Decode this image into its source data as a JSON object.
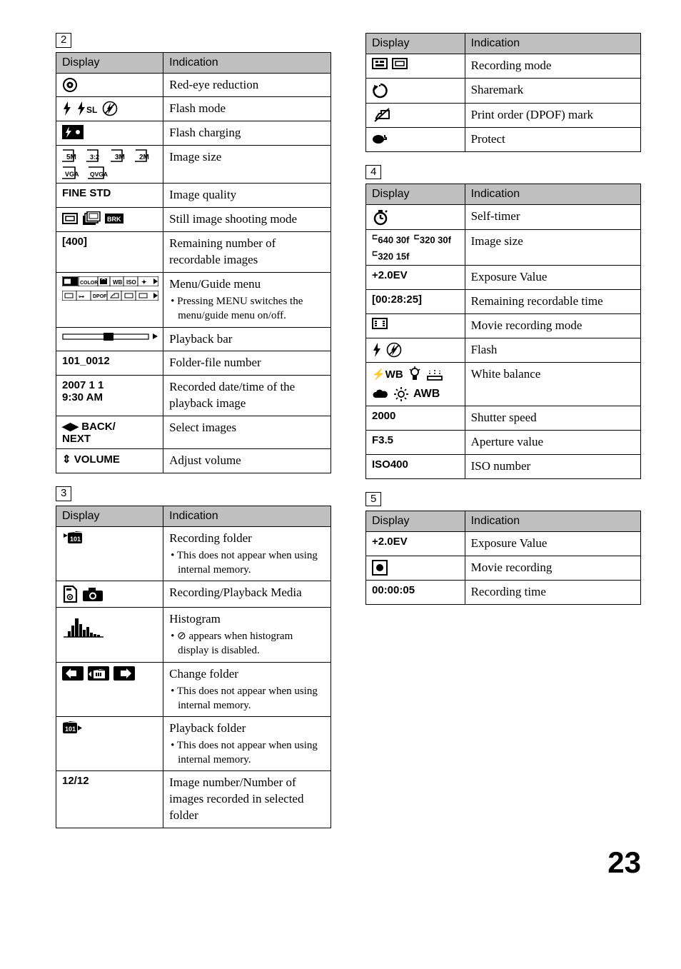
{
  "page_number": "23",
  "headers": {
    "display": "Display",
    "indication": "Indication"
  },
  "section_labels": {
    "s2": "2",
    "s3": "3",
    "s3b": "3",
    "s4": "4",
    "s5": "5"
  },
  "s2": [
    {
      "kind": "icons",
      "icons": [
        "red-eye"
      ],
      "ind": "Red-eye reduction"
    },
    {
      "kind": "icons",
      "icons": [
        "flash-fill",
        "flash-slow",
        "no-flash"
      ],
      "ind": "Flash mode"
    },
    {
      "kind": "icons",
      "icons": [
        "flash-charging"
      ],
      "ind": "Flash charging"
    },
    {
      "kind": "icons",
      "icons": [
        "sz-5m",
        "sz-32",
        "sz-3m",
        "sz-2m",
        "sz-vga",
        "sz-qvga"
      ],
      "ind": "Image size"
    },
    {
      "kind": "text",
      "disp": "FINE STD",
      "dispClass": "",
      "ind": "Image quality"
    },
    {
      "kind": "icons",
      "icons": [
        "mode-single",
        "mode-burst",
        "mode-brk"
      ],
      "ind": "Still image shooting mode"
    },
    {
      "kind": "text",
      "disp": "[400]",
      "ind": "Remaining number of recordable images"
    },
    {
      "kind": "icons",
      "icons": [
        "menu-bar-1",
        "menu-bar-2"
      ],
      "ind": "Menu/Guide menu",
      "notes": [
        "• Pressing MENU switches the menu/guide menu on/off."
      ]
    },
    {
      "kind": "icons",
      "icons": [
        "playback-bar"
      ],
      "ind": "Playback bar"
    },
    {
      "kind": "text",
      "disp": "101_0012",
      "ind": "Folder-file number"
    },
    {
      "kind": "text",
      "disp": "2007 1 1\n9:30 AM",
      "ind": "Recorded date/time of the playback image"
    },
    {
      "kind": "text",
      "disp": "◀▶ BACK/\nNEXT",
      "ind": "Select images"
    },
    {
      "kind": "text",
      "disp": "⇕ VOLUME",
      "ind": "Adjust volume"
    }
  ],
  "s3": [
    {
      "kind": "icons",
      "icons": [
        "rec-folder"
      ],
      "ind": "Recording folder",
      "notes": [
        "• This does not appear when using internal memory."
      ]
    },
    {
      "kind": "icons",
      "icons": [
        "ms-media",
        "cam-media"
      ],
      "ind": "Recording/Playback Media"
    },
    {
      "kind": "icons",
      "icons": [
        "histogram"
      ],
      "ind": "Histogram",
      "notes": [
        "• ⊘ appears when histogram display is disabled."
      ]
    },
    {
      "kind": "icons",
      "icons": [
        "chg-folder-prev",
        "chg-folder-sel",
        "chg-folder-next"
      ],
      "ind": "Change folder",
      "notes": [
        "• This does not appear when using internal memory."
      ]
    },
    {
      "kind": "icons",
      "icons": [
        "play-folder"
      ],
      "ind": "Playback folder",
      "notes": [
        "• This does not appear when using internal memory."
      ]
    },
    {
      "kind": "text",
      "disp": "12/12",
      "ind": "Image number/Number of images recorded in selected folder"
    }
  ],
  "s3b": [
    {
      "kind": "icons",
      "icons": [
        "rec-std",
        "rec-mail"
      ],
      "ind": "Recording mode"
    },
    {
      "kind": "icons",
      "icons": [
        "sharemark"
      ],
      "ind": "Sharemark"
    },
    {
      "kind": "icons",
      "icons": [
        "dpof"
      ],
      "ind": "Print order (DPOF) mark"
    },
    {
      "kind": "icons",
      "icons": [
        "protect"
      ],
      "ind": "Protect"
    }
  ],
  "s4": [
    {
      "kind": "icons",
      "icons": [
        "self-timer"
      ],
      "ind": "Self-timer"
    },
    {
      "kind": "icons",
      "icons": [
        "mv-640-30",
        "mv-320-30",
        "mv-320-15"
      ],
      "ind": "Image size"
    },
    {
      "kind": "text",
      "disp": "+2.0EV",
      "ind": "Exposure Value"
    },
    {
      "kind": "text",
      "disp": "[00:28:25]",
      "ind": "Remaining recordable time"
    },
    {
      "kind": "icons",
      "icons": [
        "movie-mode"
      ],
      "ind": "Movie recording mode"
    },
    {
      "kind": "icons",
      "icons": [
        "flash-fill",
        "no-flash"
      ],
      "ind": "Flash"
    },
    {
      "kind": "icons",
      "icons": [
        "wb-flash",
        "wb-incand",
        "wb-fluor",
        "wb-cloudy",
        "wb-day",
        "wb-auto"
      ],
      "ind": "White balance"
    },
    {
      "kind": "text",
      "disp": "2000",
      "ind": "Shutter speed"
    },
    {
      "kind": "text",
      "disp": "F3.5",
      "ind": "Aperture value"
    },
    {
      "kind": "text",
      "disp": "ISO400",
      "ind": "ISO number"
    }
  ],
  "s5": [
    {
      "kind": "text",
      "disp": "+2.0EV",
      "ind": "Exposure Value"
    },
    {
      "kind": "icons",
      "icons": [
        "rec-dot"
      ],
      "ind": "Movie recording"
    },
    {
      "kind": "text",
      "disp": "00:00:05",
      "ind": "Recording time"
    }
  ],
  "icon_svg": {
    "red-eye": "<svg width='22' height='22' viewBox='0 0 22 22'><circle cx='11' cy='11' r='9' fill='none' stroke='#000' stroke-width='2'/><circle cx='11' cy='11' r='4.5' fill='#000'/><circle cx='11' cy='11' r='1.6' fill='#fff'/></svg>",
    "flash-fill": "<svg width='14' height='20' viewBox='0 0 14 20'><polygon points='8,0 2,11 6,11 4,20 12,8 8,8' fill='#000'/></svg>",
    "flash-slow": "<svg width='30' height='20' viewBox='0 0 30 20'><polygon points='8,0 2,11 6,11 4,20 12,8 8,8' fill='#000'/><text x='14' y='16' font-family='Helvetica' font-size='12' font-weight='700'>SL</text></svg>",
    "no-flash": "<svg width='22' height='22' viewBox='0 0 22 22'><circle cx='11' cy='11' r='9.5' fill='none' stroke='#000' stroke-width='1.6'/><polygon points='12,3 7,12 10,12 8,19 15,9 11,9' fill='#000'/><line x1='4' y1='18' x2='18' y2='4' stroke='#000' stroke-width='1.6'/></svg>",
    "flash-charging": "<svg width='30' height='20' viewBox='0 0 30 20'><rect x='0' y='0' width='30' height='20' fill='#000'/><polygon points='10,2 5,11 8,11 6,18 13,8 9,8' fill='#fff'/><circle cx='22' cy='10' r='3' fill='#fff'/></svg>",
    "sz-5m": "<svg width='28' height='18' viewBox='0 0 28 18'><path d='M1 1 h15 v16 h-26 v-10' fill='none' stroke='#000' stroke-width='1.6'/><text x='6' y='14' font-family='Helvetica' font-size='10' font-weight='700'>5M</text></svg>",
    "sz-32": "<svg width='28' height='18' viewBox='0 0 28 18'><path d='M1 1 h15 v16 h-26 v-10' fill='none' stroke='#000' stroke-width='1.6'/><text x='5' y='14' font-family='Helvetica' font-size='9' font-weight='700'>3:2</text></svg>",
    "sz-3m": "<svg width='28' height='18' viewBox='0 0 28 18'><path d='M1 1 h15 v16 h-26 v-10' fill='none' stroke='#000' stroke-width='1.6'/><text x='6' y='14' font-family='Helvetica' font-size='10' font-weight='700'>3M</text></svg>",
    "sz-2m": "<svg width='28' height='18' viewBox='0 0 28 18'><path d='M1 1 h15 v16 h-26 v-10' fill='none' stroke='#000' stroke-width='1.6'/><text x='6' y='14' font-family='Helvetica' font-size='10' font-weight='700'>2M</text></svg>",
    "sz-vga": "<svg width='30' height='18' viewBox='0 0 30 18'><path d='M1 1 h17 v16 h-28 v-10' fill='none' stroke='#000' stroke-width='1.6'/><text x='4' y='14' font-family='Helvetica' font-size='9' font-weight='700'>VGA</text></svg>",
    "sz-qvga": "<svg width='34' height='18' viewBox='0 0 34 18'><path d='M1 1 h21 v16 h-32 v-10' fill='none' stroke='#000' stroke-width='1.6'/><text x='3' y='14' font-family='Helvetica' font-size='8.5' font-weight='700'>QVGA</text></svg>",
    "mode-single": "<svg width='22' height='16' viewBox='0 0 22 16'><rect x='1' y='1' width='20' height='14' fill='none' stroke='#000' stroke-width='2'/><rect x='5' y='5' width='12' height='6' fill='none' stroke='#000' stroke-width='1.5'/></svg>",
    "mode-burst": "<svg width='26' height='20' viewBox='0 0 26 20'><rect x='1' y='6' width='18' height='13' fill='#000'/><rect x='4' y='3' width='18' height='13' fill='#fff' stroke='#000' stroke-width='1.6'/><rect x='7' y='0.5' width='18' height='13' fill='#fff' stroke='#000' stroke-width='1.6'/><rect x='10' y='3' width='12' height='7' fill='#fff' stroke='#000' stroke-width='1'/></svg>",
    "mode-brk": "<svg width='26' height='14' viewBox='0 0 26 14'><rect x='0' y='0' width='26' height='14' fill='#000'/><text x='3' y='11' font-family='Helvetica' font-size='9' font-weight='700' fill='#fff'>BRK</text></svg>",
    "menu-bar-1": "<svg width='135' height='14' viewBox='0 0 135 14'><rect x='0' y='0' width='135' height='14' fill='none' stroke='#000' stroke-width='1.2'/><rect x='1' y='1' width='21' height='12' fill='#000'/><rect x='3' y='3.5' width='9' height='7' fill='#fff'/><line x1='23' y1='0' x2='23' y2='14' stroke='#000'/><text x='25' y='11' font-family='Helvetica' font-size='7'>COLOR</text><line x1='50' y1='0' x2='50' y2='14' stroke='#000'/><rect x='53' y='3' width='10' height='8' fill='#000'/><path d='M55 5 l3 -2 l3 2' fill='none' stroke='#fff'/><line x1='67' y1='0' x2='67' y2='14' stroke='#000'/><text x='71' y='11' font-family='Helvetica' font-size='8'>WB</text><line x1='86' y1='0' x2='86' y2='14' stroke='#000'/><text x='90' y='11' font-family='Helvetica' font-size='8'>ISO</text><line x1='106' y1='0' x2='106' y2='14' stroke='#000'/><text x='111' y='11' font-family='Helvetica' font-size='9'>✦</text><polygon points='128,3 134,7 128,11' fill='#000'/></svg>",
    "menu-bar-2": "<svg width='135' height='14' viewBox='0 0 135 14'><rect x='0' y='0' width='135' height='14' fill='none' stroke='#000' stroke-width='1.2'/><line x1='20' y1='0' x2='20' y2='14' stroke='#000'/><rect x='4' y='4' width='11' height='6' fill='none' stroke='#000'/><line x1='40' y1='0' x2='40' y2='14' stroke='#000'/><text x='23' y='11' font-family='Helvetica' font-size='8'>⊶</text><line x1='63' y1='0' x2='63' y2='14' stroke='#000'/><text x='43' y='10' font-family='Helvetica' font-size='7'>DPOF</text><line x1='83' y1='0' x2='83' y2='14' stroke='#000'/><path d='M68 10 l3 -4 h2 v-2 h6 v6 z' fill='none' stroke='#000'/><line x1='103' y1='0' x2='103' y2='14' stroke='#000'/><rect x='88' y='4' width='11' height='6' fill='none' stroke='#000'/><polygon points='128,3 134,7 128,11' fill='#000'/><rect x='108' y='4' width='11' height='6' fill='none' stroke='#000'/></svg>",
    "playback-bar": "<svg width='135' height='14' viewBox='0 0 135 14'><rect x='1' y='4' width='120' height='7' fill='none' stroke='#000' stroke-width='1.2'/><rect x='58' y='2' width='14' height='11' fill='#000'/><polygon points='127,3 134,7 127,11' fill='#000'/></svg>",
    "rec-folder": "<svg width='30' height='20' viewBox='0 0 30 20'><polygon points='2,4 2,10 8,7' fill='#000'/><rect x='8' y='3' width='20' height='15' rx='2' fill='#000'/><path d='M10 3 h7 l2 -2 h10' fill='#000'/><text x='11' y='15' font-family='Helvetica' font-size='9' font-weight='700' fill='#fff'>101</text></svg>",
    "ms-media": "<svg width='22' height='26' viewBox='0 0 22 26'><path d='M3 2 h12 l5 5 v17 h-17 z' fill='none' stroke='#000' stroke-width='2.2'/><rect x='6' y='5' width='7' height='3' fill='#000'/><circle cx='11' cy='17' r='3.5' fill='none' stroke='#000' stroke-width='1.6'/><polygon points='10,15.5 13,17 10,18.5' fill='#000'/></svg>",
    "cam-media": "<svg width='30' height='22' viewBox='0 0 30 22'><rect x='1' y='6' width='28' height='15' rx='2' fill='#000'/><rect x='9' y='2' width='10' height='5' fill='#000'/><circle cx='15' cy='13.5' r='5' fill='#fff'/><circle cx='15' cy='13.5' r='3' fill='#000'/></svg>",
    "histogram": "<svg width='60' height='38' viewBox='0 0 60 38'><line x1='2' y1='36' x2='58' y2='36' stroke='#000' stroke-width='1.5'/><rect x='8' y='28' width='4' height='8' fill='#000'/><rect x='13' y='20' width='4' height='16' fill='#000'/><rect x='18' y='10' width='5' height='26' fill='#000'/><rect x='24' y='18' width='4' height='18' fill='#000'/><rect x='29' y='26' width='4' height='10' fill='#000'/><rect x='34' y='22' width='4' height='14' fill='#000'/><rect x='39' y='30' width='4' height='6' fill='#000'/><rect x='44' y='32' width='4' height='4' fill='#000'/><rect x='49' y='33' width='4' height='3' fill='#000'/></svg>",
    "chg-folder-prev": "<svg width='30' height='20' viewBox='0 0 30 20'><rect x='0' y='0' width='30' height='20' fill='#000' rx='2'/><path d='M20 6 h-8 v-3 l-7 7 l7 7 v-3 h8 z' fill='#fff'/></svg>",
    "chg-folder-sel": "<svg width='30' height='20' viewBox='0 0 30 20'><rect x='0' y='0' width='30' height='20' fill='#000' rx='2'/><rect x='8' y='6' width='16' height='11' fill='#fff'/><path d='M8 6 h6 l2 -2 h8' fill='#fff'/><rect x='11' y='9' width='2' height='5' fill='#000'/><rect x='14' y='9' width='2' height='5' fill='#000'/><rect x='17' y='9' width='2' height='5' fill='#000'/><polygon points='5,7 5,15 1,11' fill='#fff'/></svg>",
    "chg-folder-next": "<svg width='30' height='20' viewBox='0 0 30 20'><rect x='0' y='0' width='30' height='20' fill='#000' rx='2'/><path d='M10 6 h8 v-3 l7 7 l-7 7 v-3 h-8 z' fill='#fff'/></svg>",
    "play-folder": "<svg width='30' height='20' viewBox='0 0 30 20'><rect x='1' y='3' width='20' height='15' rx='2' fill='#000'/><path d='M1 3 h7 l2 -2 h10' fill='#000'/><text x='4' y='15' font-family='Helvetica' font-size='9' font-weight='700' fill='#fff'>101</text><polygon points='22,7 28,10.5 22,14' fill='#000'/></svg>",
    "rec-std": "<svg width='22' height='16' viewBox='0 0 22 16'><rect x='1' y='1' width='20' height='14' fill='none' stroke='#000' stroke-width='2'/><rect x='5' y='4' width='4' height='3' fill='#000'/><rect x='5' y='9' width='12' height='3' fill='#000'/><rect x='11' y='4' width='6' height='3' fill='#000'/></svg>",
    "rec-mail": "<svg width='22' height='16' viewBox='0 0 22 16'><rect x='1' y='1' width='20' height='14' fill='none' stroke='#000' stroke-width='2'/><rect x='5' y='5' width='12' height='6' fill='none' stroke='#000' stroke-width='1.5'/></svg>",
    "sharemark": "<svg width='24' height='24' viewBox='0 0 24 24'><path d='M12 3 a9 9 0 1 1 -8 4' fill='none' stroke='#000' stroke-width='2.5'/><polygon points='3,4 9,6 4,11' fill='#000'/><circle cx='11' cy='5' r='1.2' fill='#000'/></svg>",
    "dpof": "<svg width='26' height='22' viewBox='0 0 26 22'><path d='M6 15 l4 -6 h3 v-4 h11 v11 h-18 z' fill='none' stroke='#000' stroke-width='2'/><line x1='4' y1='20' x2='24' y2='2' stroke='#000' stroke-width='2'/></svg>",
    "protect": "<svg width='22' height='18' viewBox='0 0 22 18'><ellipse cx='9' cy='11' rx='8' ry='6' fill='#000'/><path d='M15 11 h5 v-2 l-2 -1 v-3' fill='none' stroke='#000' stroke-width='2'/></svg>",
    "self-timer": "<svg width='24' height='24' viewBox='0 0 24 24'><circle cx='12' cy='14' r='8' fill='none' stroke='#000' stroke-width='2.5'/><line x1='12' y1='14' x2='12' y2='9' stroke='#000' stroke-width='2.5'/><line x1='12' y1='14' x2='16' y2='14' stroke='#000' stroke-width='2.2'/><rect x='9' y='2' width='6' height='3' fill='#000'/><line x1='19' y1='5' x2='21' y2='3' stroke='#000' stroke-width='2.5'/></svg>",
    "mv-640-30": "<span style='font-family:Helvetica;font-size:13px;font-weight:700;white-space:nowrap'><sup style='font-size:10px'>⊏</sup>640 30f</span>",
    "mv-320-30": "<span style='font-family:Helvetica;font-size:13px;font-weight:700;white-space:nowrap'><sup style='font-size:10px'>⊏</sup>320 30f</span>",
    "mv-320-15": "<span style='font-family:Helvetica;font-size:13px;font-weight:700;white-space:nowrap'><sup style='font-size:10px'>⊏</sup>320 15f</span>",
    "movie-mode": "<svg width='22' height='16' viewBox='0 0 22 16'><rect x='1' y='1' width='20' height='14' fill='none' stroke='#000' stroke-width='2'/><rect x='4' y='4' width='3' height='2' fill='#000'/><rect x='4' y='7' width='3' height='2' fill='#000'/><rect x='4' y='10' width='3' height='2' fill='#000'/><rect x='15' y='4' width='3' height='2' fill='#000'/><rect x='15' y='7' width='3' height='2' fill='#000'/><rect x='15' y='10' width='3' height='2' fill='#000'/></svg>",
    "wb-flash": "<span style='font-family:Helvetica;font-size:15px;font-weight:700'>⚡WB</span>",
    "wb-incand": "<svg width='20' height='22' viewBox='0 0 20 22'><circle cx='10' cy='8' r='5' fill='none' stroke='#000' stroke-width='1.8'/><line x1='10' y1='0' x2='10' y2='3' stroke='#000' stroke-width='1.5'/><line x1='3' y1='4' x2='5' y2='6' stroke='#000' stroke-width='1.5'/><line x1='17' y1='4' x2='15' y2='6' stroke='#000' stroke-width='1.5'/><rect x='7' y='13' width='6' height='6' fill='#000'/></svg>",
    "wb-fluor": "<svg width='24' height='18' viewBox='0 0 24 18'><rect x='2' y='12' width='20' height='5' fill='none' stroke='#000' stroke-width='1.8'/><line x1='5' y1='9' x2='5' y2='4' stroke='#000' stroke-width='1.5' stroke-dasharray='2 2'/><line x1='12' y1='9' x2='12' y2='3' stroke='#000' stroke-width='1.5' stroke-dasharray='2 2'/><line x1='19' y1='9' x2='19' y2='4' stroke='#000' stroke-width='1.5' stroke-dasharray='2 2'/></svg>",
    "wb-cloudy": "<svg width='24' height='16' viewBox='0 0 24 16'><path d='M5 13 a4 4 0 0 1 1 -8 a5 5 0 0 1 9 -1 a4 4 0 0 1 4 9 z' fill='#000'/></svg>",
    "wb-day": "<svg width='22' height='22' viewBox='0 0 22 22'><circle cx='11' cy='11' r='4' fill='none' stroke='#000' stroke-width='1.8'/><g stroke='#000' stroke-width='1.8'><line x1='11' y1='1' x2='11' y2='4'/><line x1='11' y1='18' x2='11' y2='21'/><line x1='1' y1='11' x2='4' y2='11'/><line x1='18' y1='11' x2='21' y2='11'/><line x1='4' y1='4' x2='6' y2='6'/><line x1='16' y1='16' x2='18' y2='18'/><line x1='4' y1='18' x2='6' y2='16'/><line x1='16' y1='6' x2='18' y2='4'/></g></svg>",
    "wb-auto": "<span style='font-family:Helvetica;font-size:16px;font-weight:700'>AWB</span>",
    "rec-dot": "<svg width='22' height='22' viewBox='0 0 22 22'><rect x='1' y='1' width='20' height='20' fill='none' stroke='#000' stroke-width='2'/><circle cx='11' cy='11' r='5' fill='#000'/></svg>"
  }
}
